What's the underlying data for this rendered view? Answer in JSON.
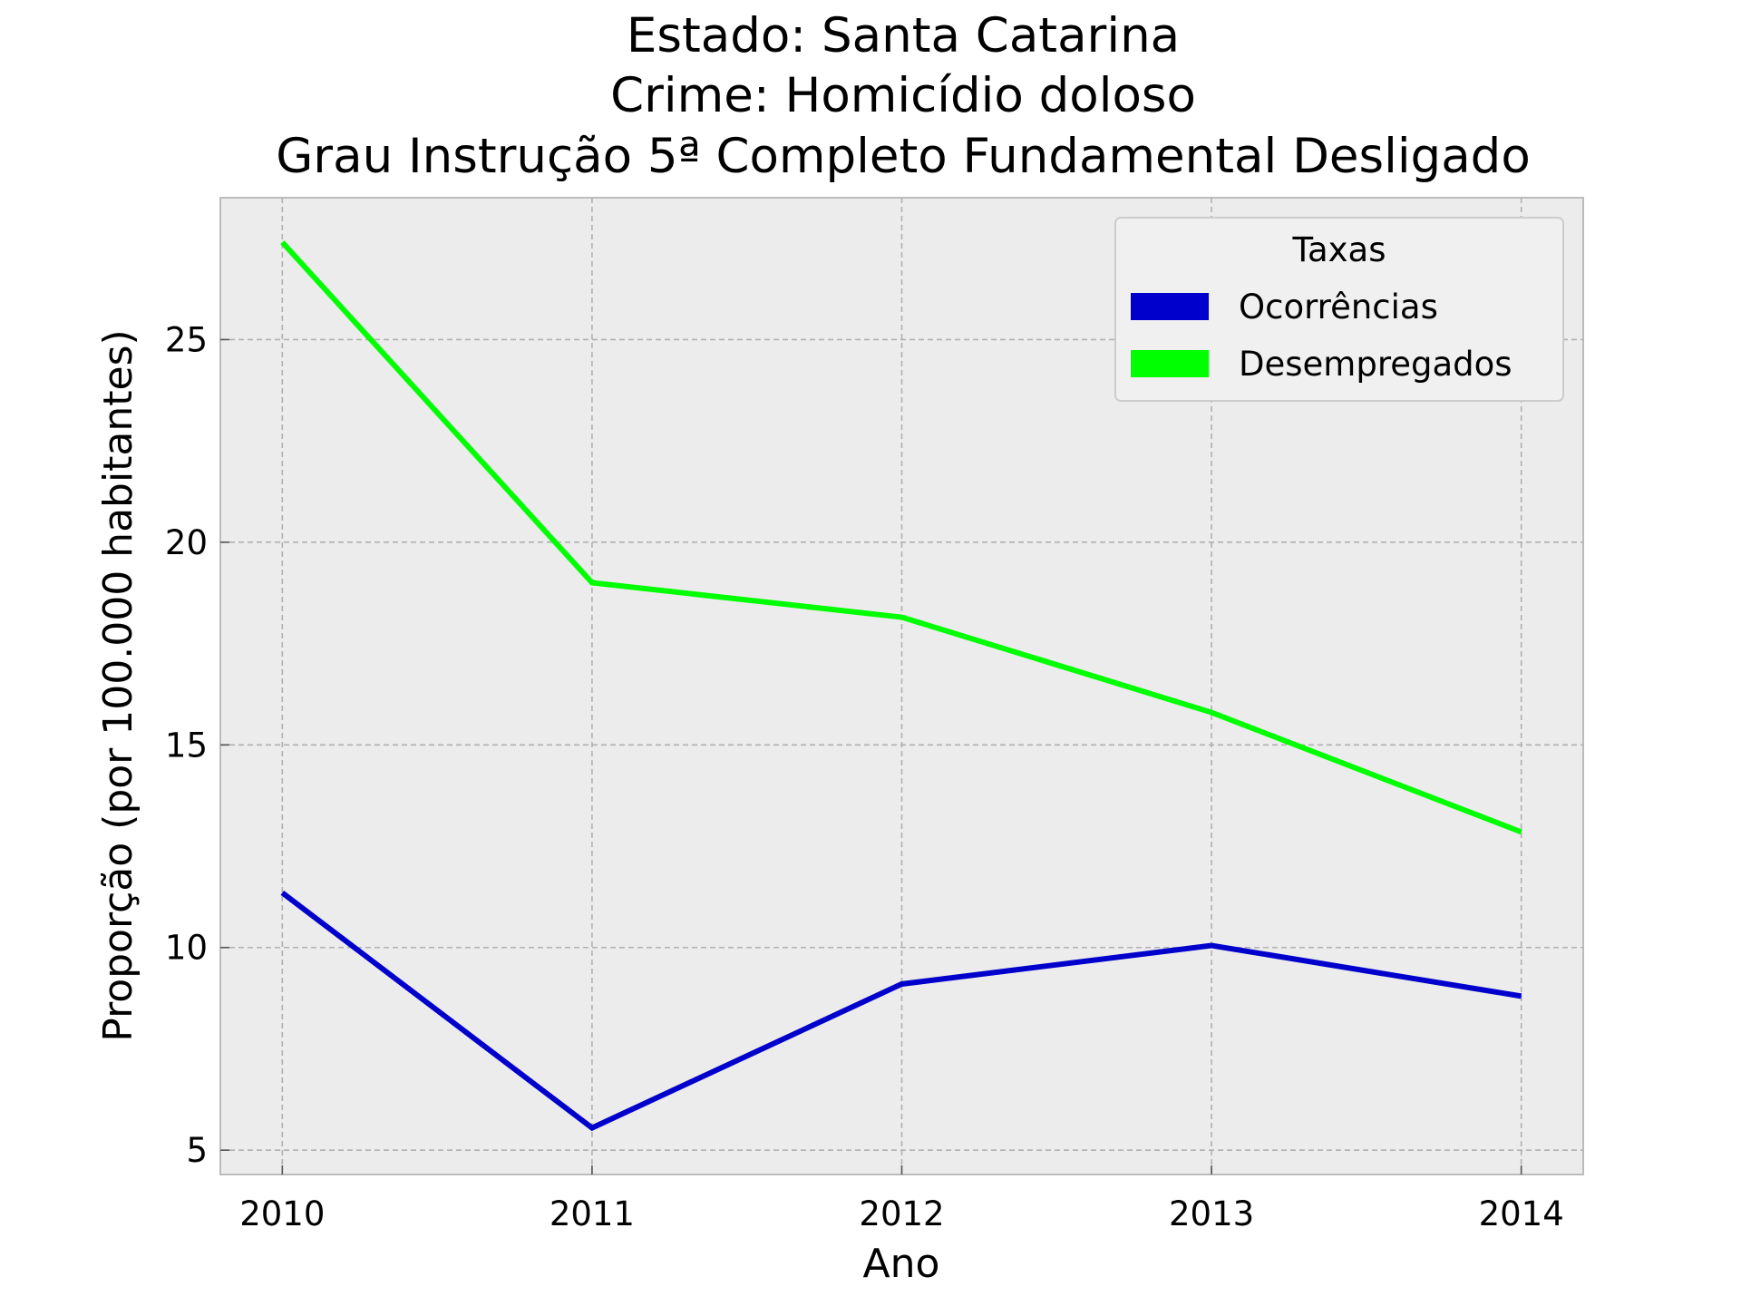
{
  "chart_data": {
    "type": "line",
    "title_lines": [
      "Estado: Santa Catarina",
      "Crime: Homicídio doloso",
      "Grau Instrução  5ª Completo Fundamental   Desligado"
    ],
    "xlabel": "Ano",
    "ylabel": "Proporção (por 100.000 habitantes)",
    "x": [
      2010,
      2011,
      2012,
      2013,
      2014
    ],
    "x_tick_labels": [
      "2010",
      "2011",
      "2012",
      "2013",
      "2014"
    ],
    "y_ticks": [
      5,
      10,
      15,
      20,
      25
    ],
    "y_tick_labels": [
      "5",
      "10",
      "15",
      "20",
      "25"
    ],
    "xlim": [
      2009.8,
      2014.2
    ],
    "ylim": [
      4.4,
      28.5
    ],
    "grid": true,
    "legend": {
      "title": "Taxas",
      "placement": "top-right"
    },
    "series": [
      {
        "name": "Ocorrências",
        "color": "#0000cc",
        "values": [
          11.35,
          5.55,
          9.1,
          10.05,
          8.8
        ]
      },
      {
        "name": "Desempregados",
        "color": "#00ff00",
        "values": [
          27.4,
          19.0,
          18.15,
          15.8,
          12.85
        ]
      }
    ]
  }
}
